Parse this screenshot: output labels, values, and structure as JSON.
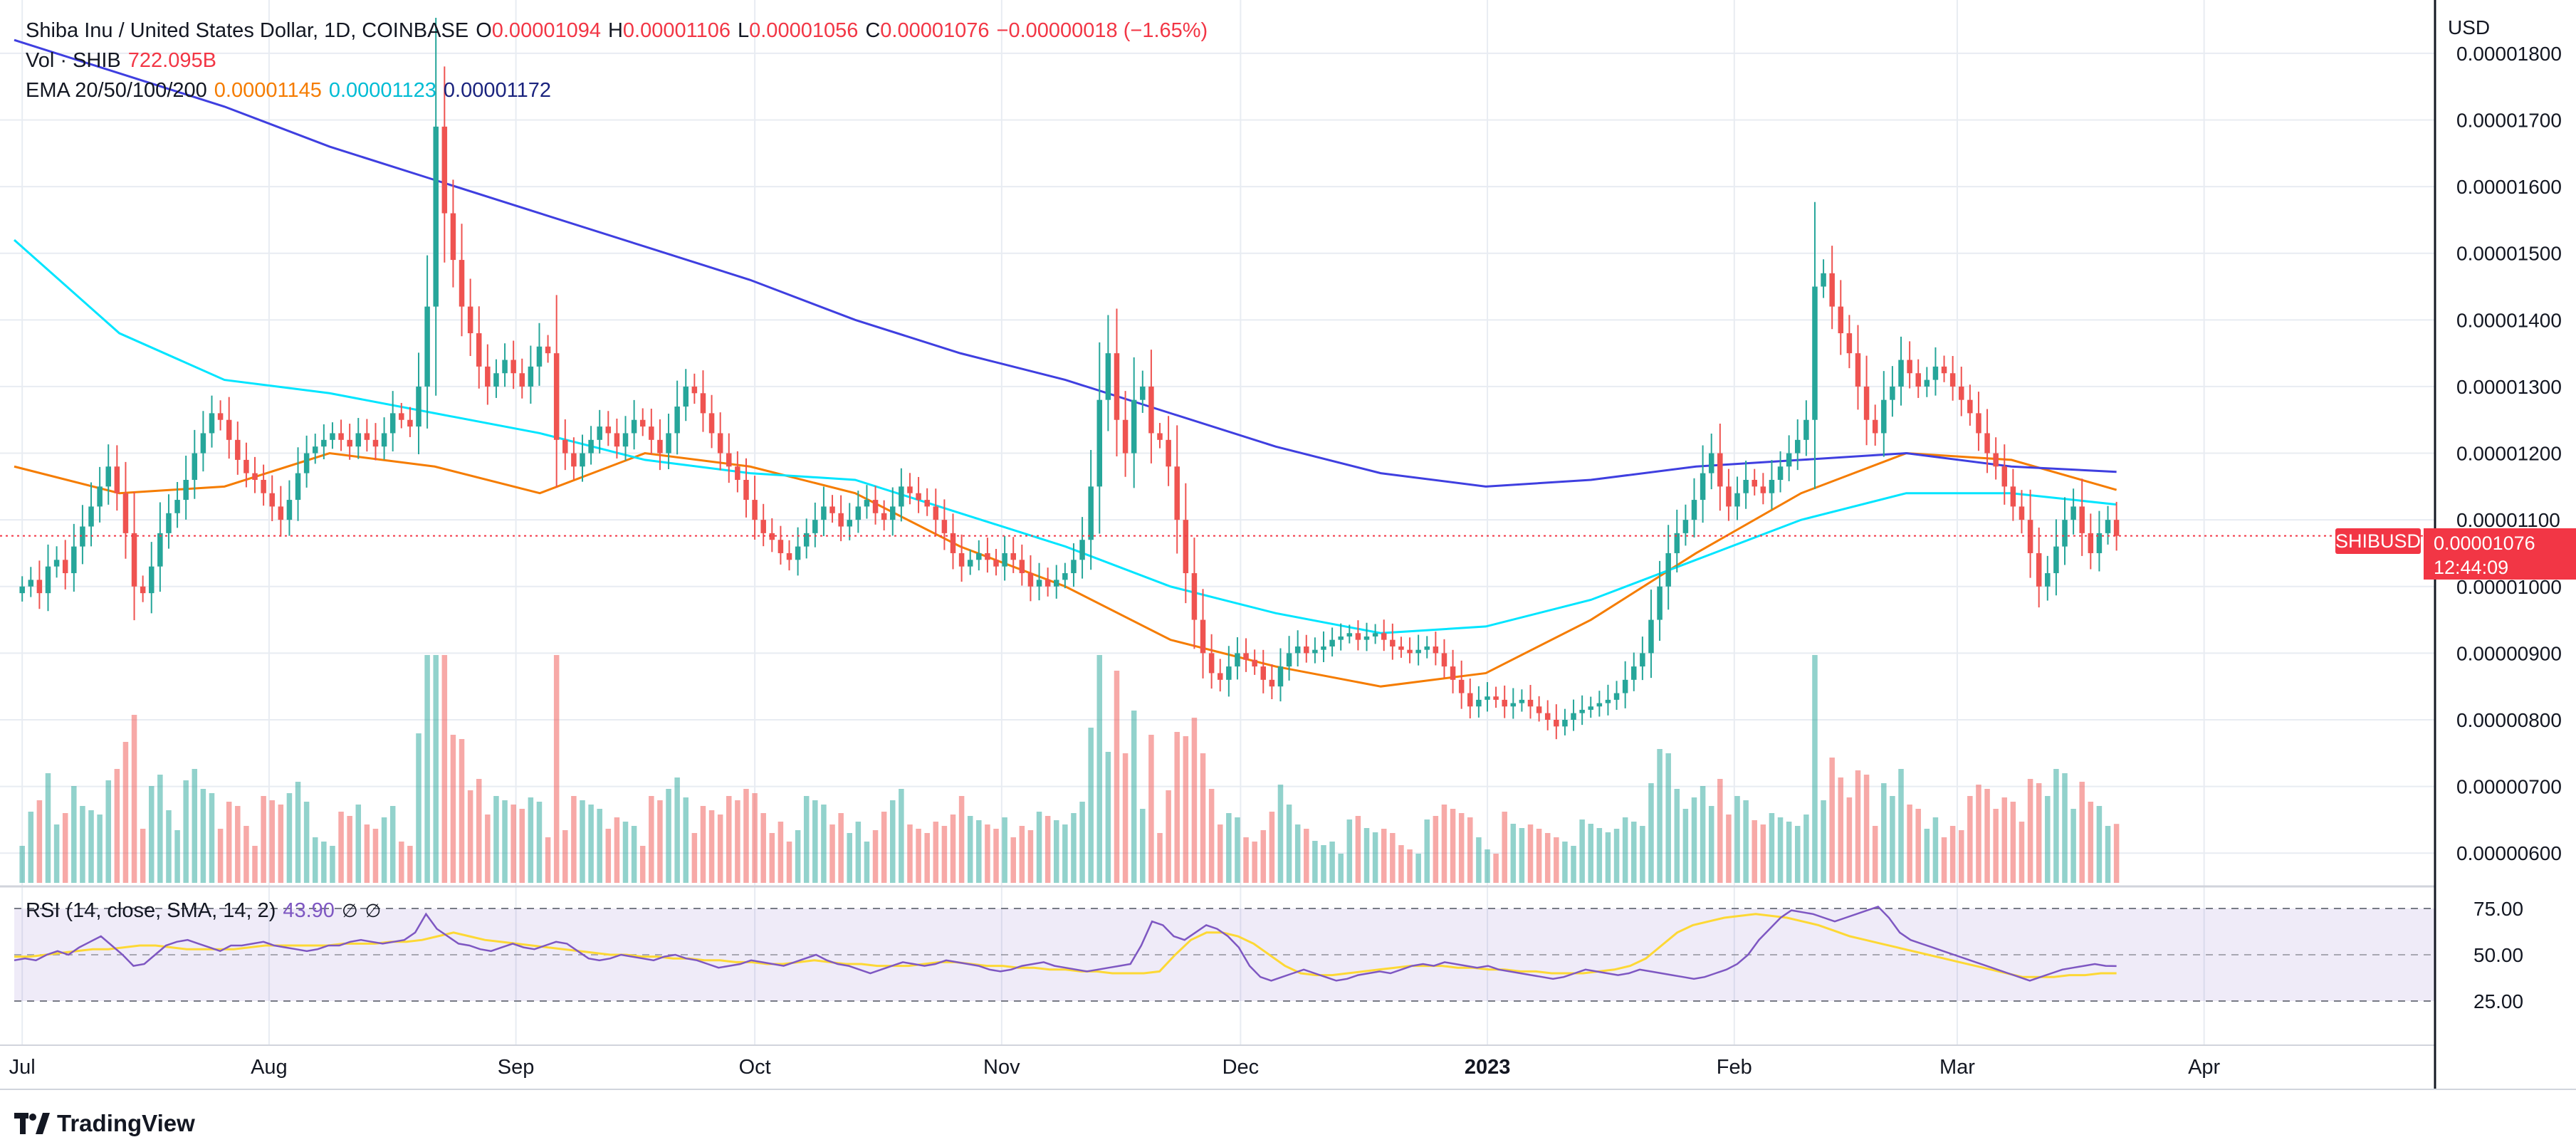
{
  "header": {
    "symbol": "Shiba Inu / United States Dollar, 1D, COINBASE",
    "o_label": "O",
    "o_value": "0.00001094",
    "h_label": "H",
    "h_value": "0.00001106",
    "l_label": "L",
    "l_value": "0.00001056",
    "c_label": "C",
    "c_value": "0.00001076",
    "change": "−0.00000018 (−1.65%)",
    "vol_label": "Vol · SHIB",
    "vol_value": "722.095B",
    "ema_label": "EMA 20/50/100/200",
    "ema20": "0.00001145",
    "ema50": "0.00001123",
    "ema100": "0.00001172"
  },
  "rsi": {
    "label": "RSI (14, close, SMA, 14, 2)",
    "value": "43.90",
    "ticks": [
      "75.00",
      "50.00",
      "25.00"
    ]
  },
  "price_axis": {
    "unit": "USD",
    "ticks": [
      "0.00001800",
      "0.00001700",
      "0.00001600",
      "0.00001500",
      "0.00001400",
      "0.00001300",
      "0.00001200",
      "0.00001100",
      "0.00001000",
      "0.00000900",
      "0.00000800",
      "0.00000700",
      "0.00000600"
    ]
  },
  "last_price": {
    "symbol": "SHIBUSD",
    "price": "0.00001076",
    "countdown": "12:44:09"
  },
  "time_axis": {
    "labels": [
      "Jul",
      "Aug",
      "Sep",
      "Oct",
      "Nov",
      "Dec",
      "2023",
      "Feb",
      "Mar",
      "Apr"
    ]
  },
  "brand": "TradingView",
  "colors": {
    "up": "#26a69a",
    "down": "#ef5350",
    "ema20": "#f57c00",
    "ema50": "#00e5ff",
    "ema100": "#3f3fe0",
    "rsi": "#7e57c2",
    "rsi_ma": "#fdd835"
  },
  "chart_data": {
    "type": "candlestick",
    "ylim": [
      5.5e-06,
      1.88e-05
    ],
    "x_range": [
      "2022-06-30",
      "2023-04-30"
    ],
    "x_anchors": [
      [
        "2022-07-01",
        "2023-03-21"
      ]
    ],
    "close": [
      1e-05,
      1.01e-05,
      9.9e-06,
      1.03e-05,
      1.04e-05,
      1.02e-05,
      1.06e-05,
      1.09e-05,
      1.12e-05,
      1.15e-05,
      1.18e-05,
      1.14e-05,
      1.08e-05,
      1e-05,
      9.9e-06,
      1.03e-05,
      1.08e-05,
      1.11e-05,
      1.13e-05,
      1.16e-05,
      1.2e-05,
      1.23e-05,
      1.26e-05,
      1.25e-05,
      1.22e-05,
      1.19e-05,
      1.17e-05,
      1.16e-05,
      1.14e-05,
      1.12e-05,
      1.1e-05,
      1.13e-05,
      1.17e-05,
      1.2e-05,
      1.21e-05,
      1.22e-05,
      1.23e-05,
      1.22e-05,
      1.21e-05,
      1.23e-05,
      1.22e-05,
      1.21e-05,
      1.23e-05,
      1.26e-05,
      1.25e-05,
      1.24e-05,
      1.3e-05,
      1.42e-05,
      1.69e-05,
      1.56e-05,
      1.49e-05,
      1.42e-05,
      1.38e-05,
      1.33e-05,
      1.3e-05,
      1.32e-05,
      1.34e-05,
      1.32e-05,
      1.3e-05,
      1.33e-05,
      1.36e-05,
      1.35e-05,
      1.22e-05,
      1.2e-05,
      1.18e-05,
      1.2e-05,
      1.22e-05,
      1.24e-05,
      1.23e-05,
      1.21e-05,
      1.23e-05,
      1.25e-05,
      1.24e-05,
      1.22e-05,
      1.2e-05,
      1.23e-05,
      1.27e-05,
      1.3e-05,
      1.29e-05,
      1.26e-05,
      1.23e-05,
      1.2e-05,
      1.18e-05,
      1.16e-05,
      1.13e-05,
      1.1e-05,
      1.08e-05,
      1.07e-05,
      1.05e-05,
      1.04e-05,
      1.06e-05,
      1.08e-05,
      1.1e-05,
      1.12e-05,
      1.11e-05,
      1.09e-05,
      1.1e-05,
      1.12e-05,
      1.13e-05,
      1.11e-05,
      1.1e-05,
      1.12e-05,
      1.15e-05,
      1.14e-05,
      1.13e-05,
      1.12e-05,
      1.1e-05,
      1.08e-05,
      1.05e-05,
      1.03e-05,
      1.04e-05,
      1.05e-05,
      1.04e-05,
      1.03e-05,
      1.05e-05,
      1.04e-05,
      1.02e-05,
      1e-05,
      1.01e-05,
      1e-05,
      1.01e-05,
      1.02e-05,
      1.04e-05,
      1.07e-05,
      1.15e-05,
      1.28e-05,
      1.35e-05,
      1.25e-05,
      1.2e-05,
      1.28e-05,
      1.3e-05,
      1.23e-05,
      1.22e-05,
      1.18e-05,
      1.1e-05,
      1.02e-05,
      9.5e-06,
      9e-06,
      8.7e-06,
      8.6e-06,
      8.8e-06,
      9e-06,
      8.9e-06,
      8.8e-06,
      8.6e-06,
      8.5e-06,
      8.8e-06,
      9e-06,
      9.1e-06,
      9e-06,
      9.05e-06,
      9.1e-06,
      9.2e-06,
      9.25e-06,
      9.3e-06,
      9.2e-06,
      9.25e-06,
      9.3e-06,
      9.2e-06,
      9.1e-06,
      9.05e-06,
      9e-06,
      9.05e-06,
      9.1e-06,
      9e-06,
      8.8e-06,
      8.6e-06,
      8.4e-06,
      8.2e-06,
      8.3e-06,
      8.35e-06,
      8.3e-06,
      8.2e-06,
      8.25e-06,
      8.3e-06,
      8.2e-06,
      8.1e-06,
      8e-06,
      7.9e-06,
      8e-06,
      8.1e-06,
      8.15e-06,
      8.2e-06,
      8.25e-06,
      8.3e-06,
      8.4e-06,
      8.6e-06,
      8.8e-06,
      9e-06,
      9.5e-06,
      1e-05,
      1.05e-05,
      1.08e-05,
      1.1e-05,
      1.13e-05,
      1.17e-05,
      1.2e-05,
      1.15e-05,
      1.12e-05,
      1.14e-05,
      1.16e-05,
      1.15e-05,
      1.14e-05,
      1.16e-05,
      1.18e-05,
      1.2e-05,
      1.22e-05,
      1.25e-05,
      1.45e-05,
      1.47e-05,
      1.42e-05,
      1.38e-05,
      1.35e-05,
      1.3e-05,
      1.25e-05,
      1.23e-05,
      1.28e-05,
      1.3e-05,
      1.34e-05,
      1.32e-05,
      1.3e-05,
      1.31e-05,
      1.33e-05,
      1.32e-05,
      1.3e-05,
      1.28e-05,
      1.26e-05,
      1.23e-05,
      1.2e-05,
      1.18e-05,
      1.15e-05,
      1.12e-05,
      1.1e-05,
      1.05e-05,
      1e-05,
      1.02e-05,
      1.06e-05,
      1.1e-05,
      1.12e-05,
      1.08e-05,
      1.05e-05,
      1.08e-05,
      1.1e-05,
      1.076e-05
    ],
    "ema": [
      {
        "name": "EMA 20",
        "values": [
          1.18e-05,
          1.14e-05,
          1.15e-05,
          1.2e-05,
          1.18e-05,
          1.14e-05,
          1.2e-05,
          1.18e-05,
          1.14e-05,
          1.06e-05,
          1e-05,
          9.2e-06,
          8.8e-06,
          8.5e-06,
          8.7e-06,
          9.5e-06,
          1.05e-05,
          1.14e-05,
          1.2e-05,
          1.19e-05,
          1.145e-05
        ]
      },
      {
        "name": "EMA 50",
        "values": [
          1.52e-05,
          1.38e-05,
          1.31e-05,
          1.29e-05,
          1.26e-05,
          1.23e-05,
          1.19e-05,
          1.17e-05,
          1.16e-05,
          1.11e-05,
          1.06e-05,
          1e-05,
          9.6e-06,
          9.3e-06,
          9.4e-06,
          9.8e-06,
          1.04e-05,
          1.1e-05,
          1.14e-05,
          1.14e-05,
          1.123e-05
        ]
      },
      {
        "name": "EMA 100",
        "values": [
          1.82e-05,
          1.77e-05,
          1.72e-05,
          1.66e-05,
          1.61e-05,
          1.56e-05,
          1.51e-05,
          1.46e-05,
          1.4e-05,
          1.35e-05,
          1.31e-05,
          1.26e-05,
          1.21e-05,
          1.17e-05,
          1.15e-05,
          1.16e-05,
          1.18e-05,
          1.19e-05,
          1.2e-05,
          1.18e-05,
          1.172e-05
        ]
      }
    ],
    "rsi": [
      47,
      48,
      47,
      50,
      52,
      50,
      54,
      57,
      60,
      55,
      50,
      44,
      45,
      50,
      55,
      57,
      58,
      56,
      54,
      52,
      55,
      55,
      56,
      57,
      55,
      54,
      53,
      52,
      53,
      55,
      55,
      57,
      58,
      57,
      56,
      57,
      58,
      62,
      72,
      64,
      60,
      56,
      55,
      53,
      52,
      54,
      56,
      54,
      53,
      55,
      57,
      56,
      52,
      48,
      47,
      48,
      50,
      49,
      48,
      47,
      49,
      50,
      48,
      47,
      45,
      43,
      44,
      45,
      47,
      46,
      45,
      44,
      46,
      48,
      50,
      47,
      45,
      44,
      42,
      40,
      42,
      44,
      46,
      45,
      44,
      45,
      47,
      46,
      45,
      44,
      42,
      41,
      42,
      44,
      45,
      46,
      44,
      43,
      42,
      41,
      42,
      43,
      44,
      45,
      55,
      68,
      66,
      60,
      58,
      62,
      66,
      64,
      60,
      54,
      44,
      38,
      36,
      38,
      40,
      42,
      40,
      38,
      36,
      37,
      39,
      40,
      41,
      40,
      42,
      44,
      45,
      44,
      46,
      45,
      44,
      43,
      44,
      42,
      41,
      40,
      39,
      38,
      37,
      38,
      40,
      42,
      41,
      40,
      39,
      40,
      42,
      41,
      40,
      39,
      38,
      37,
      38,
      40,
      42,
      45,
      50,
      58,
      64,
      70,
      74,
      73,
      72,
      70,
      68,
      70,
      72,
      74,
      76,
      70,
      62,
      58,
      56,
      54,
      52,
      50,
      48,
      46,
      44,
      42,
      40,
      38,
      36,
      38,
      40,
      42,
      43,
      44,
      45,
      44,
      43.9
    ],
    "rsi_ma": [
      49,
      49,
      50,
      51,
      52,
      53,
      53,
      54,
      55,
      55,
      54,
      53,
      53,
      53,
      53,
      54,
      55,
      55,
      55,
      55,
      55,
      56,
      56,
      56,
      57,
      57,
      58,
      60,
      62,
      60,
      58,
      57,
      56,
      55,
      54,
      53,
      52,
      51,
      50,
      50,
      49,
      49,
      48,
      48,
      47,
      47,
      46,
      46,
      45,
      45,
      46,
      47,
      46,
      45,
      45,
      44,
      44,
      44,
      45,
      46,
      46,
      45,
      44,
      44,
      43,
      43,
      42,
      42,
      41,
      41,
      40,
      40,
      40,
      41,
      50,
      58,
      62,
      62,
      60,
      56,
      50,
      44,
      40,
      39,
      39,
      40,
      41,
      42,
      43,
      44,
      44,
      44,
      43,
      43,
      42,
      42,
      41,
      41,
      40,
      40,
      40,
      41,
      42,
      44,
      48,
      55,
      62,
      66,
      68,
      70,
      71,
      72,
      71,
      70,
      68,
      66,
      63,
      60,
      58,
      56,
      54,
      52,
      50,
      48,
      46,
      44,
      42,
      40,
      38,
      38,
      38,
      39,
      39,
      40,
      40
    ]
  }
}
